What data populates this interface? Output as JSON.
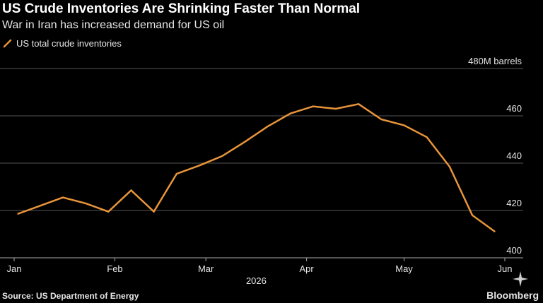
{
  "title": "US Crude Inventories Are Shrinking Faster Than Normal",
  "subtitle": "War in Iran has increased demand for US oil",
  "source": "Source: US Department of Energy",
  "logo": "Bloomberg",
  "colors": {
    "background": "#000000",
    "series": "#e8953a",
    "grid": "#555555",
    "text": "#e6e6e6"
  },
  "chart_data": {
    "type": "line",
    "ylabel": "",
    "y_unit_label": "480M barrels",
    "ylim": [
      400,
      480
    ],
    "y_ticks": [
      400,
      420,
      440,
      460,
      480
    ],
    "y_tick_labels": [
      "400",
      "420",
      "440",
      "460",
      "480M barrels"
    ],
    "x_range": [
      "2026-01-01",
      "2026-06-01"
    ],
    "x_ticks": [
      {
        "date": "2026-01-01",
        "label": "Jan"
      },
      {
        "date": "2026-02-01",
        "label": "Feb"
      },
      {
        "date": "2026-03-01",
        "label": "Mar"
      },
      {
        "date": "2026-04-01",
        "label": "Apr"
      },
      {
        "date": "2026-05-01",
        "label": "May"
      },
      {
        "date": "2026-06-01",
        "label": "Jun"
      }
    ],
    "year_label": "2026",
    "grid": true,
    "legend_position": "top-left",
    "series": [
      {
        "name": "US total crude inventories",
        "color": "#e8953a",
        "points": [
          {
            "x": "2026-01-02",
            "y": 418.5
          },
          {
            "x": "2026-01-09",
            "y": 422
          },
          {
            "x": "2026-01-16",
            "y": 425.5
          },
          {
            "x": "2026-01-23",
            "y": 423
          },
          {
            "x": "2026-01-30",
            "y": 419.5
          },
          {
            "x": "2026-02-06",
            "y": 428.5
          },
          {
            "x": "2026-02-13",
            "y": 419.5
          },
          {
            "x": "2026-02-20",
            "y": 435.5
          },
          {
            "x": "2026-02-27",
            "y": 439
          },
          {
            "x": "2026-03-06",
            "y": 443
          },
          {
            "x": "2026-03-13",
            "y": 449
          },
          {
            "x": "2026-03-20",
            "y": 455.5
          },
          {
            "x": "2026-03-27",
            "y": 461
          },
          {
            "x": "2026-04-03",
            "y": 464
          },
          {
            "x": "2026-04-10",
            "y": 463
          },
          {
            "x": "2026-04-17",
            "y": 465
          },
          {
            "x": "2026-04-24",
            "y": 458.5
          },
          {
            "x": "2026-05-01",
            "y": 456
          },
          {
            "x": "2026-05-08",
            "y": 451
          },
          {
            "x": "2026-05-15",
            "y": 438.5
          },
          {
            "x": "2026-05-22",
            "y": 418
          },
          {
            "x": "2026-05-29",
            "y": 411
          }
        ]
      }
    ]
  }
}
